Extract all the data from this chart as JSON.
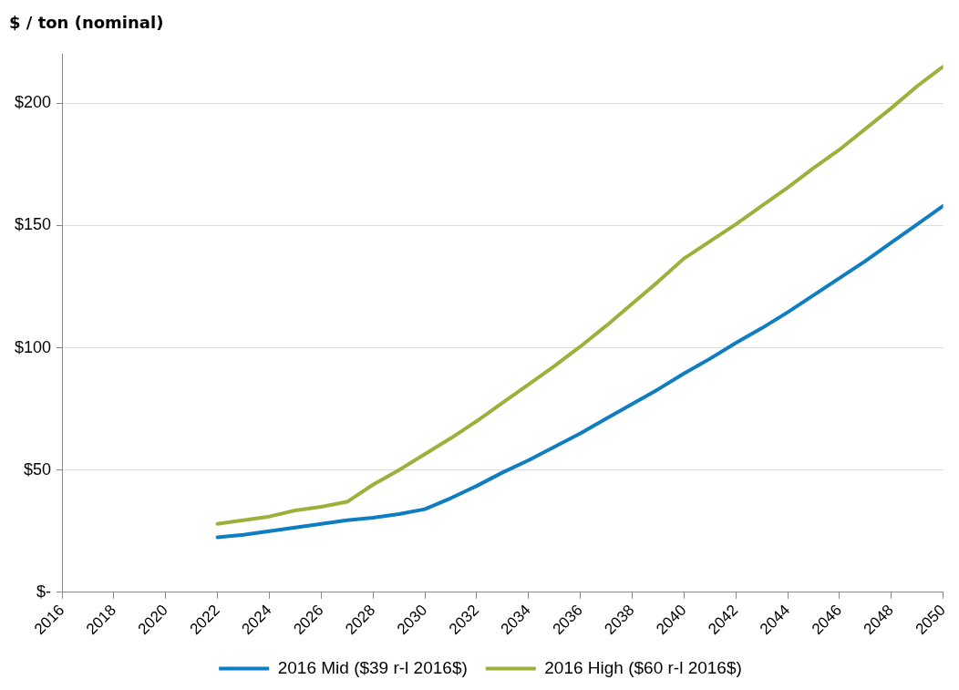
{
  "chart_data": {
    "type": "line",
    "ylabel": "$ / ton (nominal)",
    "x": [
      2022,
      2023,
      2024,
      2025,
      2026,
      2027,
      2028,
      2029,
      2030,
      2031,
      2032,
      2033,
      2034,
      2035,
      2036,
      2037,
      2038,
      2039,
      2040,
      2041,
      2042,
      2043,
      2044,
      2045,
      2046,
      2047,
      2048,
      2049,
      2050
    ],
    "series": [
      {
        "name": "2016 Mid ($39 r-l 2016$)",
        "color": "#0f7dc2",
        "values": [
          22.5,
          23.5,
          25,
          26.5,
          28,
          29.5,
          30.5,
          32,
          34,
          38.5,
          43.5,
          49,
          54,
          59.5,
          65,
          71,
          77,
          83,
          89.5,
          95.5,
          102,
          108,
          114.5,
          121.5,
          128.5,
          135.5,
          143,
          150.5,
          158
        ]
      },
      {
        "name": "2016 High ($60 r-l 2016$)",
        "color": "#9cb03c",
        "values": [
          28,
          29.5,
          31,
          33.5,
          35,
          37,
          44,
          50,
          56.5,
          63,
          70,
          77.5,
          85,
          92.5,
          100.5,
          109,
          118,
          127,
          136.5,
          143.5,
          150.5,
          158,
          165.5,
          173.5,
          181,
          189.5,
          198,
          207,
          215
        ]
      }
    ],
    "xlim": [
      2016,
      2050
    ],
    "xticks": [
      2016,
      2018,
      2020,
      2022,
      2024,
      2026,
      2028,
      2030,
      2032,
      2034,
      2036,
      2038,
      2040,
      2042,
      2044,
      2046,
      2048,
      2050
    ],
    "ylim": [
      0,
      220
    ],
    "yticks": [
      {
        "value": 0,
        "label": "$-"
      },
      {
        "value": 50,
        "label": "$50"
      },
      {
        "value": 100,
        "label": "$100"
      },
      {
        "value": 150,
        "label": "$150"
      },
      {
        "value": 200,
        "label": "$200"
      }
    ],
    "grid": "y",
    "legend": "bottom",
    "marker": "none",
    "line_style": "solid"
  }
}
